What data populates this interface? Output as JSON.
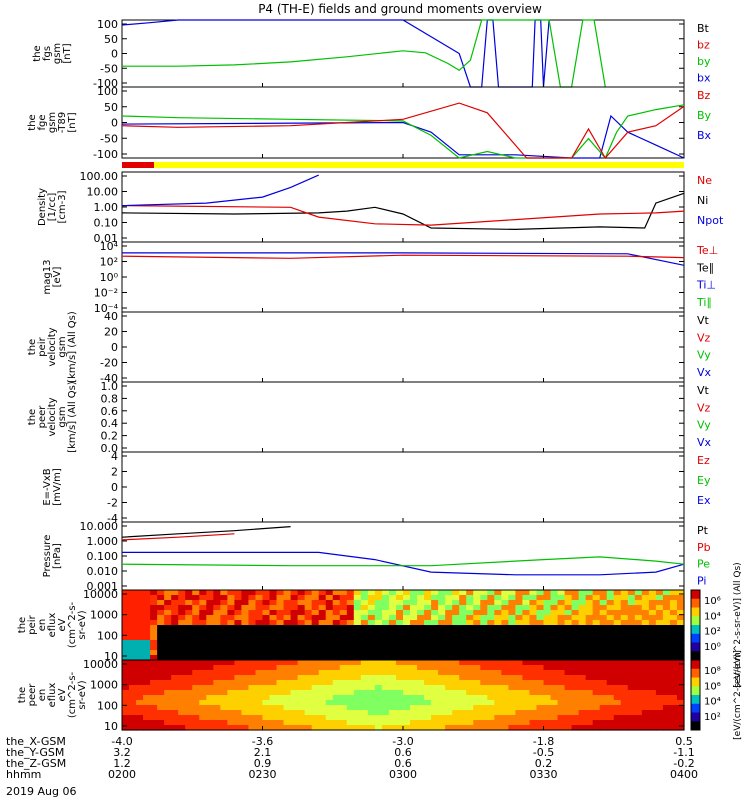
{
  "title": "P4 (TH-E) fields and ground moments overview",
  "date_label": "2019 Aug 06",
  "colors": {
    "black": "#000000",
    "red": "#e00000",
    "green": "#00c000",
    "blue": "#0000e0",
    "yellow": "#ffff00"
  },
  "chart_data": [
    {
      "type": "line",
      "panel": "fgs",
      "ylabel": [
        "the",
        "fgs",
        "gsm",
        "[nT]"
      ],
      "ylim": [
        -100,
        100
      ],
      "yticks": [
        "100",
        "50",
        "0",
        "-50",
        "-100"
      ],
      "legend": [
        {
          "label": "Bt",
          "color": "black"
        },
        {
          "label": "bz",
          "color": "red"
        },
        {
          "label": "by",
          "color": "green"
        },
        {
          "label": "bx",
          "color": "blue"
        }
      ],
      "series": [
        {
          "name": "bx",
          "color": "blue",
          "points": [
            [
              0,
              85
            ],
            [
              0.05,
              92
            ],
            [
              0.1,
              100
            ],
            [
              0.4,
              200
            ],
            [
              0.5,
              100
            ],
            [
              0.6,
              0
            ],
            [
              0.62,
              -100
            ],
            [
              0.64,
              -100
            ],
            [
              0.65,
              100
            ],
            [
              0.66,
              100
            ],
            [
              0.67,
              -100
            ],
            [
              0.73,
              -100
            ],
            [
              0.735,
              100
            ],
            [
              0.745,
              100
            ],
            [
              0.75,
              -100
            ],
            [
              0.76,
              100
            ]
          ]
        },
        {
          "name": "by",
          "color": "green",
          "points": [
            [
              0,
              -38
            ],
            [
              0.1,
              -38
            ],
            [
              0.2,
              -34
            ],
            [
              0.3,
              -25
            ],
            [
              0.4,
              -10
            ],
            [
              0.5,
              8
            ],
            [
              0.54,
              2
            ],
            [
              0.58,
              -30
            ],
            [
              0.6,
              -50
            ],
            [
              0.62,
              -20
            ],
            [
              0.64,
              100
            ],
            [
              0.76,
              100
            ],
            [
              0.78,
              -100
            ],
            [
              0.8,
              -100
            ],
            [
              0.82,
              100
            ],
            [
              0.84,
              100
            ],
            [
              0.86,
              -100
            ]
          ]
        }
      ]
    },
    {
      "type": "line",
      "panel": "fge",
      "ylabel": [
        "the",
        "fge",
        "gsm",
        "-T89",
        "[nT]"
      ],
      "ylim": [
        -120,
        100
      ],
      "yticks": [
        "100",
        "50",
        "0",
        "-50",
        "-100"
      ],
      "legend": [
        {
          "label": "Bz",
          "color": "red"
        },
        {
          "label": "By",
          "color": "green"
        },
        {
          "label": "Bx",
          "color": "blue"
        }
      ],
      "series": [
        {
          "name": "Bx",
          "color": "blue",
          "points": [
            [
              0,
              -15
            ],
            [
              0.5,
              -10
            ],
            [
              0.55,
              -40
            ],
            [
              0.6,
              -110
            ],
            [
              0.7,
              -110
            ],
            [
              0.8,
              -120
            ],
            [
              0.85,
              -120
            ],
            [
              0.87,
              10
            ],
            [
              0.9,
              -40
            ],
            [
              0.95,
              -80
            ],
            [
              1,
              -120
            ]
          ]
        },
        {
          "name": "By",
          "color": "green",
          "points": [
            [
              0,
              10
            ],
            [
              0.1,
              5
            ],
            [
              0.3,
              0
            ],
            [
              0.5,
              -5
            ],
            [
              0.55,
              -50
            ],
            [
              0.6,
              -120
            ],
            [
              0.65,
              -100
            ],
            [
              0.7,
              -120
            ],
            [
              0.8,
              -120
            ],
            [
              0.83,
              -60
            ],
            [
              0.86,
              -120
            ],
            [
              0.88,
              -40
            ],
            [
              0.9,
              10
            ],
            [
              0.95,
              30
            ],
            [
              1,
              45
            ]
          ]
        },
        {
          "name": "Bz",
          "color": "red",
          "points": [
            [
              0,
              -20
            ],
            [
              0.1,
              -25
            ],
            [
              0.3,
              -20
            ],
            [
              0.5,
              0
            ],
            [
              0.6,
              50
            ],
            [
              0.65,
              20
            ],
            [
              0.7,
              -80
            ],
            [
              0.72,
              -120
            ],
            [
              0.8,
              -120
            ],
            [
              0.83,
              -30
            ],
            [
              0.86,
              -120
            ],
            [
              0.9,
              -40
            ],
            [
              0.95,
              -20
            ],
            [
              1,
              40
            ]
          ]
        }
      ]
    },
    {
      "type": "line",
      "panel": "density",
      "ylabel": [
        "Density",
        "[1/cc]",
        "[cm-3]"
      ],
      "yscale": "log",
      "ylim": [
        0.005,
        500
      ],
      "yticks": [
        "100.00",
        "10.00",
        "1.00",
        "0.10",
        "0.01"
      ],
      "legend": [
        {
          "label": "Ne",
          "color": "red"
        },
        {
          "label": "Ni",
          "color": "black"
        },
        {
          "label": "Npot",
          "color": "blue"
        }
      ],
      "series": [
        {
          "name": "Ni",
          "color": "black",
          "points": [
            [
              0,
              0.6
            ],
            [
              0.2,
              0.5
            ],
            [
              0.35,
              0.6
            ],
            [
              0.4,
              0.8
            ],
            [
              0.45,
              1.5
            ],
            [
              0.5,
              0.5
            ],
            [
              0.55,
              0.05
            ],
            [
              0.7,
              0.04
            ],
            [
              0.85,
              0.06
            ],
            [
              0.93,
              0.05
            ],
            [
              0.95,
              3
            ],
            [
              1,
              15
            ]
          ]
        },
        {
          "name": "Ne",
          "color": "red",
          "points": [
            [
              0,
              2
            ],
            [
              0.3,
              1.5
            ],
            [
              0.35,
              0.3
            ],
            [
              0.45,
              0.1
            ],
            [
              0.55,
              0.08
            ],
            [
              0.7,
              0.2
            ],
            [
              0.85,
              0.5
            ],
            [
              0.95,
              0.6
            ],
            [
              1,
              0.8
            ]
          ]
        },
        {
          "name": "Npot",
          "color": "blue",
          "points": [
            [
              0,
              2
            ],
            [
              0.15,
              3
            ],
            [
              0.25,
              8
            ],
            [
              0.3,
              40
            ],
            [
              0.35,
              300
            ]
          ]
        }
      ]
    },
    {
      "type": "line",
      "panel": "temperature",
      "ylabel": [
        "mag13",
        "[eV]"
      ],
      "yscale": "log",
      "ylim": [
        0.0001,
        100000
      ],
      "yticks": [
        "10⁴",
        "10²",
        "10⁰",
        "10⁻²",
        "10⁻⁴"
      ],
      "legend": [
        {
          "label": "Te⊥",
          "color": "red"
        },
        {
          "label": "Te∥",
          "color": "black"
        },
        {
          "label": "Ti⊥",
          "color": "blue"
        },
        {
          "label": "Ti∥",
          "color": "green"
        }
      ],
      "series": [
        {
          "name": "Ti",
          "color": "blue",
          "points": [
            [
              0,
              4000
            ],
            [
              0.5,
              4000
            ],
            [
              0.9,
              3000
            ],
            [
              1,
              100
            ]
          ]
        },
        {
          "name": "Te",
          "color": "red",
          "points": [
            [
              0,
              1500
            ],
            [
              0.3,
              800
            ],
            [
              0.5,
              2000
            ],
            [
              0.9,
              1500
            ],
            [
              1,
              1000
            ]
          ]
        }
      ]
    },
    {
      "type": "line",
      "panel": "peir velocity",
      "ylabel": [
        "the",
        "peir",
        "velocity",
        "gsm",
        "[km/s] (All Qs)"
      ],
      "ylim": [
        -40,
        40
      ],
      "yticks": [
        "40",
        "20",
        "0",
        "-20",
        "-40"
      ],
      "legend": [
        {
          "label": "Vt",
          "color": "black"
        },
        {
          "label": "Vz",
          "color": "red"
        },
        {
          "label": "Vy",
          "color": "green"
        },
        {
          "label": "Vx",
          "color": "blue"
        }
      ],
      "series": []
    },
    {
      "type": "line",
      "panel": "peer velocity",
      "ylabel": [
        "the",
        "peer",
        "velocity",
        "gsm",
        "[km/s] (All Qs)"
      ],
      "ylim": [
        0,
        1
      ],
      "yticks": [
        "1.0",
        "0.8",
        "0.6",
        "0.4",
        "0.2",
        "0.0"
      ],
      "legend": [
        {
          "label": "Vt",
          "color": "black"
        },
        {
          "label": "Vz",
          "color": "red"
        },
        {
          "label": "Vy",
          "color": "green"
        },
        {
          "label": "Vx",
          "color": "blue"
        }
      ],
      "series": []
    },
    {
      "type": "line",
      "panel": "efield",
      "ylabel": [
        "E=-VxB",
        "[mV/m]"
      ],
      "ylim": [
        -4,
        4
      ],
      "yticks": [
        "4",
        "2",
        "0",
        "-2",
        "-4"
      ],
      "legend": [
        {
          "label": "Ez",
          "color": "red"
        },
        {
          "label": "Ey",
          "color": "green"
        },
        {
          "label": "Ex",
          "color": "blue"
        }
      ],
      "series": []
    },
    {
      "type": "line",
      "panel": "pressure",
      "ylabel": [
        "Pressure",
        "[nPa]"
      ],
      "yscale": "log",
      "ylim": [
        0.001,
        30
      ],
      "yticks": [
        "10.000",
        "1.000",
        "0.100",
        "0.010",
        "0.001"
      ],
      "legend": [
        {
          "label": "Pt",
          "color": "black"
        },
        {
          "label": "Pb",
          "color": "red"
        },
        {
          "label": "Pe",
          "color": "green"
        },
        {
          "label": "Pi",
          "color": "blue"
        }
      ],
      "series": [
        {
          "name": "Pt",
          "color": "black",
          "points": [
            [
              0,
              3
            ],
            [
              0.1,
              5
            ],
            [
              0.2,
              8
            ],
            [
              0.3,
              15
            ]
          ]
        },
        {
          "name": "Pb",
          "color": "red",
          "points": [
            [
              0,
              2
            ],
            [
              0.1,
              3
            ],
            [
              0.2,
              5
            ]
          ]
        },
        {
          "name": "Pi",
          "color": "blue",
          "points": [
            [
              0,
              0.3
            ],
            [
              0.2,
              0.3
            ],
            [
              0.35,
              0.3
            ],
            [
              0.45,
              0.1
            ],
            [
              0.55,
              0.015
            ],
            [
              0.7,
              0.01
            ],
            [
              0.85,
              0.01
            ],
            [
              0.95,
              0.015
            ],
            [
              1,
              0.05
            ]
          ]
        },
        {
          "name": "Pe",
          "color": "green",
          "points": [
            [
              0,
              0.05
            ],
            [
              0.3,
              0.04
            ],
            [
              0.55,
              0.04
            ],
            [
              0.75,
              0.1
            ],
            [
              0.85,
              0.15
            ],
            [
              0.95,
              0.08
            ],
            [
              1,
              0.05
            ]
          ]
        }
      ]
    },
    {
      "type": "heatmap",
      "panel": "peir eflux",
      "ylabel": [
        "the",
        "peir",
        "en",
        "eflux",
        "eV",
        "(cm^2-s-",
        "sr-eV)"
      ],
      "yticks": [
        "10000",
        "1000",
        "100",
        "10"
      ],
      "colorbar_ticks": [
        "10⁶",
        "10⁴",
        "10²",
        "10⁰"
      ],
      "colorbar_label": "[eV/(cm^2-s-sr-eV)] (All Qs)"
    },
    {
      "type": "heatmap",
      "panel": "peer eflux",
      "ylabel": [
        "the",
        "peer",
        "en",
        "eflux",
        "eV",
        "(cm^2-s-",
        "sr-eV)"
      ],
      "yticks": [
        "10000",
        "1000",
        "100",
        "10"
      ],
      "colorbar_ticks": [
        "10⁸",
        "10⁶",
        "10⁴",
        "10²"
      ],
      "colorbar_label": "[eV/(cm^2-s-sr-eV)]"
    }
  ],
  "xaxis": {
    "row_labels": [
      "the_X-GSM",
      "the_Y-GSM",
      "the_Z-GSM",
      "hhmm"
    ],
    "columns": [
      {
        "x": "-4.0",
        "y": "3.2",
        "z": "1.2",
        "t": "0200"
      },
      {
        "x": "-3.6",
        "y": "2.1",
        "z": "0.9",
        "t": "0230"
      },
      {
        "x": "-3.0",
        "y": "0.6",
        "z": "0.6",
        "t": "0300"
      },
      {
        "x": "-1.8",
        "y": "-0.5",
        "z": "0.2",
        "t": "0330"
      },
      {
        "x": "0.5",
        "y": "-1.1",
        "z": "-0.2",
        "t": "0400"
      }
    ]
  }
}
